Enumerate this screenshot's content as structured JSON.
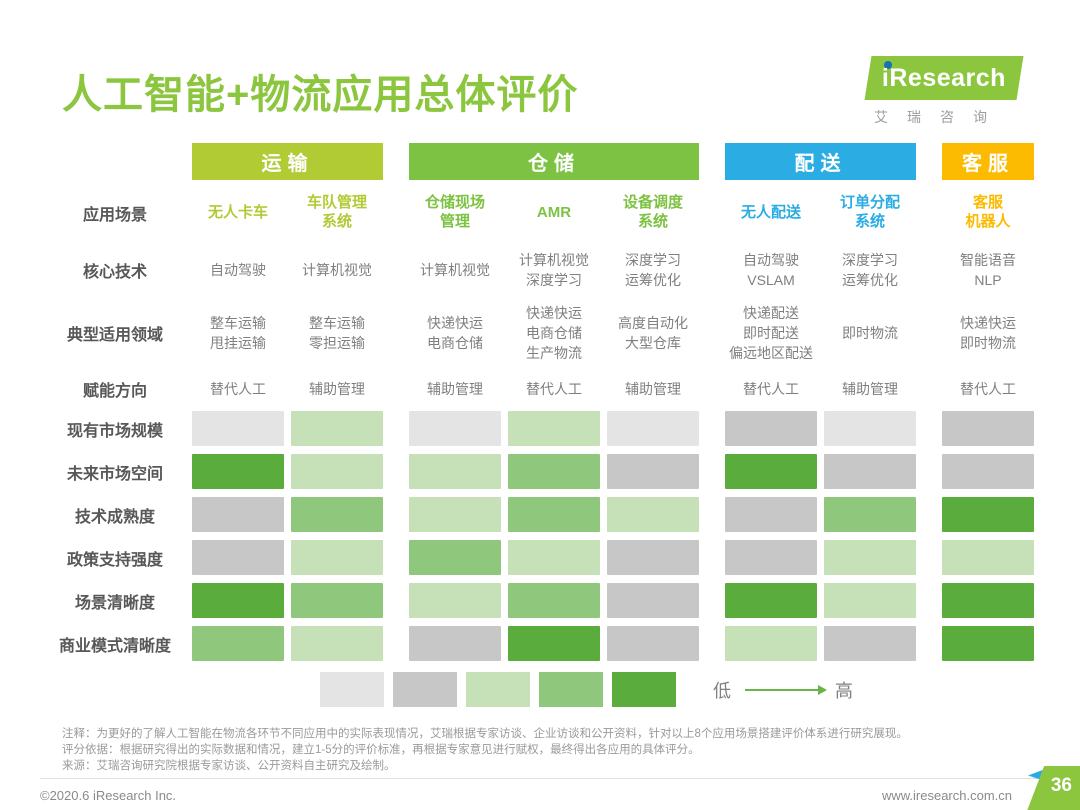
{
  "header": {
    "title": "人工智能+物流应用总体评价",
    "logo": {
      "text": "iResearch",
      "cn": "艾瑞咨询"
    }
  },
  "table": {
    "groups": [
      {
        "label": "运输",
        "color": "#b1cb35",
        "name": "transport",
        "cols": 2
      },
      {
        "label": "仓储",
        "color": "#7dc242",
        "name": "warehousing",
        "cols": 3
      },
      {
        "label": "配送",
        "color": "#2bace3",
        "name": "delivery",
        "cols": 2
      },
      {
        "label": "客服",
        "color": "#fcba00",
        "name": "customer-service",
        "cols": 1
      }
    ],
    "row_labels": {
      "scene": "应用场景",
      "tech": "核心技术",
      "domain": "典型适用领域",
      "direction": "赋能方向"
    },
    "columns": [
      {
        "group": 0,
        "scene": "无人卡车",
        "tech": "自动驾驶",
        "domain": "整车运输\n甩挂运输",
        "direction": "替代人工"
      },
      {
        "group": 0,
        "scene": "车队管理\n系统",
        "tech": "计算机视觉",
        "domain": "整车运输\n零担运输",
        "direction": "辅助管理"
      },
      {
        "group": 1,
        "scene": "仓储现场\n管理",
        "tech": "计算机视觉",
        "domain": "快递快运\n电商仓储",
        "direction": "辅助管理"
      },
      {
        "group": 1,
        "scene": "AMR",
        "tech": "计算机视觉\n深度学习",
        "domain": "快递快运\n电商仓储\n生产物流",
        "direction": "替代人工"
      },
      {
        "group": 1,
        "scene": "设备调度\n系统",
        "tech": "深度学习\n运筹优化",
        "domain": "高度自动化\n大型仓库",
        "direction": "辅助管理"
      },
      {
        "group": 2,
        "scene": "无人配送",
        "tech": "自动驾驶\nVSLAM",
        "domain": "快递配送\n即时配送\n偏远地区配送",
        "direction": "替代人工"
      },
      {
        "group": 2,
        "scene": "订单分配\n系统",
        "tech": "深度学习\n运筹优化",
        "domain": "即时物流",
        "direction": "辅助管理"
      },
      {
        "group": 3,
        "scene": "客服\n机器人",
        "tech": "智能语音\nNLP",
        "domain": "快递快运\n即时物流",
        "direction": "替代人工"
      }
    ]
  },
  "chart_data": {
    "type": "heatmap",
    "title": "人工智能+物流应用总体评价",
    "columns": [
      "无人卡车",
      "车队管理系统",
      "仓储现场管理",
      "AMR",
      "设备调度系统",
      "无人配送",
      "订单分配系统",
      "客服机器人"
    ],
    "column_groups": [
      {
        "label": "运输",
        "span": 2
      },
      {
        "label": "仓储",
        "span": 3
      },
      {
        "label": "配送",
        "span": 2
      },
      {
        "label": "客服",
        "span": 1
      }
    ],
    "rows": [
      "现有市场规模",
      "未来市场空间",
      "技术成熟度",
      "政策支持强度",
      "场景清晰度",
      "商业模式清晰度"
    ],
    "values": [
      [
        1,
        3,
        1,
        3,
        1,
        2,
        1,
        2
      ],
      [
        5,
        3,
        3,
        4,
        2,
        5,
        2,
        2
      ],
      [
        2,
        4,
        3,
        4,
        3,
        2,
        4,
        5
      ],
      [
        2,
        3,
        4,
        3,
        2,
        2,
        3,
        3
      ],
      [
        5,
        4,
        3,
        4,
        2,
        5,
        3,
        5
      ],
      [
        4,
        3,
        2,
        5,
        2,
        3,
        2,
        5
      ]
    ],
    "scale": {
      "min": 1,
      "max": 5,
      "low_label": "低",
      "high_label": "高",
      "colors": [
        "#e4e4e4",
        "#c7c7c7",
        "#c6e1b8",
        "#8fc87c",
        "#5aad3d"
      ]
    }
  },
  "notes": [
    "注释：为更好的了解人工智能在物流各环节不同应用中的实际表现情况，艾瑞根据专家访谈、企业访谈和公开资料，针对以上8个应用场景搭建评价体系进行研究展现。",
    "评分依据：根据研究得出的实际数据和情况，建立1-5分的评价标准，再根据专家意见进行赋权，最终得出各应用的具体评分。",
    "来源：艾瑞咨询研究院根据专家访谈、公开资料自主研究及绘制。"
  ],
  "footer": {
    "copyright": "©2020.6 iResearch Inc.",
    "url": "www.iresearch.com.cn",
    "page": "36"
  }
}
